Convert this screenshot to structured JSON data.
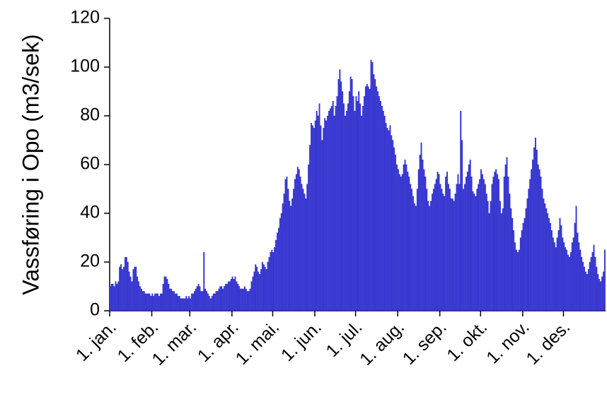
{
  "chart_data": {
    "type": "bar",
    "y_label": "Vassføring i Opo (m3/sek)",
    "color": "#3333e6",
    "ylim": [
      0,
      120
    ],
    "yticks": [
      0,
      20,
      40,
      60,
      80,
      100,
      120
    ],
    "categories": [
      "1. jan.",
      null,
      null,
      null,
      null,
      null,
      null,
      null,
      null,
      null,
      null,
      null,
      null,
      null,
      null,
      null,
      null,
      null,
      null,
      null,
      null,
      null,
      null,
      null,
      null,
      null,
      null,
      null,
      null,
      null,
      null,
      "1. feb.",
      null,
      null,
      null,
      null,
      null,
      null,
      null,
      null,
      null,
      null,
      null,
      null,
      null,
      null,
      null,
      null,
      null,
      null,
      null,
      null,
      null,
      null,
      null,
      null,
      null,
      null,
      null,
      "1. mar.",
      null,
      null,
      null,
      null,
      null,
      null,
      null,
      null,
      null,
      null,
      null,
      null,
      null,
      null,
      null,
      null,
      null,
      null,
      null,
      null,
      null,
      null,
      null,
      null,
      null,
      null,
      null,
      null,
      null,
      null,
      "1. apr.",
      null,
      null,
      null,
      null,
      null,
      null,
      null,
      null,
      null,
      null,
      null,
      null,
      null,
      null,
      null,
      null,
      null,
      null,
      null,
      null,
      null,
      null,
      null,
      null,
      null,
      null,
      null,
      null,
      null,
      "1. mai.",
      null,
      null,
      null,
      null,
      null,
      null,
      null,
      null,
      null,
      null,
      null,
      null,
      null,
      null,
      null,
      null,
      null,
      null,
      null,
      null,
      null,
      null,
      null,
      null,
      null,
      null,
      null,
      null,
      null,
      null,
      "1. jun.",
      null,
      null,
      null,
      null,
      null,
      null,
      null,
      null,
      null,
      null,
      null,
      null,
      null,
      null,
      null,
      null,
      null,
      null,
      null,
      null,
      null,
      null,
      null,
      null,
      null,
      null,
      null,
      null,
      null,
      "1. jul.",
      null,
      null,
      null,
      null,
      null,
      null,
      null,
      null,
      null,
      null,
      null,
      null,
      null,
      null,
      null,
      null,
      null,
      null,
      null,
      null,
      null,
      null,
      null,
      null,
      null,
      null,
      null,
      null,
      null,
      null,
      "1. aug.",
      null,
      null,
      null,
      null,
      null,
      null,
      null,
      null,
      null,
      null,
      null,
      null,
      null,
      null,
      null,
      null,
      null,
      null,
      null,
      null,
      null,
      null,
      null,
      null,
      null,
      null,
      null,
      null,
      null,
      null,
      "1. sep.",
      null,
      null,
      null,
      null,
      null,
      null,
      null,
      null,
      null,
      null,
      null,
      null,
      null,
      null,
      null,
      null,
      null,
      null,
      null,
      null,
      null,
      null,
      null,
      null,
      null,
      null,
      null,
      null,
      null,
      "1. okt.",
      null,
      null,
      null,
      null,
      null,
      null,
      null,
      null,
      null,
      null,
      null,
      null,
      null,
      null,
      null,
      null,
      null,
      null,
      null,
      null,
      null,
      null,
      null,
      null,
      null,
      null,
      null,
      null,
      null,
      null,
      "1. nov.",
      null,
      null,
      null,
      null,
      null,
      null,
      null,
      null,
      null,
      null,
      null,
      null,
      null,
      null,
      null,
      null,
      null,
      null,
      null,
      null,
      null,
      null,
      null,
      null,
      null,
      null,
      null,
      null,
      null,
      "1. des.",
      null,
      null,
      null,
      null,
      null,
      null,
      null,
      null,
      null,
      null,
      null,
      null,
      null,
      null,
      null,
      null,
      null,
      null,
      null,
      null,
      null,
      null,
      null,
      null,
      null,
      null,
      null,
      null,
      null,
      null
    ],
    "values": [
      10,
      11,
      11,
      10,
      12,
      11,
      12,
      18,
      19,
      17,
      18,
      22,
      22,
      20,
      16,
      14,
      12,
      17,
      18,
      18,
      14,
      12,
      10,
      9,
      8,
      8,
      7,
      7,
      7,
      7,
      6,
      7,
      6,
      7,
      7,
      7,
      6,
      7,
      7,
      11,
      14,
      14,
      13,
      11,
      9,
      9,
      8,
      8,
      7,
      7,
      6,
      6,
      5,
      5,
      5,
      5,
      6,
      5,
      6,
      5,
      7,
      7,
      8,
      9,
      10,
      11,
      10,
      8,
      8,
      24,
      9,
      8,
      7,
      6,
      5,
      6,
      7,
      7,
      8,
      8,
      9,
      10,
      10,
      9,
      10,
      11,
      11,
      12,
      12,
      13,
      14,
      13,
      14,
      12,
      11,
      10,
      9,
      9,
      9,
      10,
      9,
      8,
      8,
      9,
      12,
      14,
      16,
      19,
      18,
      16,
      15,
      17,
      20,
      19,
      18,
      17,
      20,
      22,
      24,
      25,
      24,
      26,
      29,
      32,
      34,
      38,
      40,
      44,
      48,
      54,
      55,
      50,
      45,
      43,
      46,
      50,
      54,
      56,
      59,
      58,
      55,
      52,
      50,
      48,
      46,
      52,
      60,
      68,
      77,
      76,
      75,
      78,
      82,
      80,
      85,
      76,
      70,
      75,
      79,
      78,
      80,
      82,
      83,
      84,
      86,
      80,
      84,
      88,
      95,
      99,
      94,
      90,
      85,
      80,
      82,
      85,
      90,
      96,
      95,
      88,
      82,
      88,
      86,
      90,
      85,
      80,
      84,
      88,
      92,
      93,
      92,
      91,
      103,
      102,
      97,
      95,
      92,
      90,
      88,
      86,
      84,
      82,
      80,
      77,
      75,
      74,
      76,
      72,
      70,
      67,
      64,
      60,
      58,
      56,
      55,
      56,
      60,
      62,
      60,
      57,
      55,
      52,
      50,
      47,
      44,
      43,
      50,
      58,
      64,
      69,
      62,
      58,
      55,
      50,
      45,
      43,
      45,
      48,
      50,
      52,
      54,
      57,
      56,
      52,
      50,
      48,
      47,
      55,
      57,
      52,
      50,
      46,
      46,
      45,
      48,
      52,
      56,
      52,
      82,
      70,
      50,
      52,
      55,
      57,
      60,
      62,
      55,
      49,
      48,
      47,
      50,
      52,
      54,
      58,
      56,
      54,
      52,
      48,
      45,
      40,
      45,
      52,
      55,
      57,
      58,
      56,
      54,
      45,
      40,
      42,
      55,
      60,
      63,
      55,
      48,
      42,
      38,
      33,
      28,
      25,
      24,
      25,
      30,
      33,
      36,
      38,
      42,
      46,
      50,
      54,
      58,
      62,
      67,
      71,
      66,
      60,
      58,
      55,
      50,
      46,
      44,
      42,
      40,
      38,
      36,
      33,
      30,
      28,
      26,
      30,
      33,
      38,
      35,
      30,
      28,
      26,
      25,
      23,
      22,
      24,
      28,
      30,
      36,
      43,
      32,
      28,
      25,
      22,
      20,
      18,
      16,
      15,
      17,
      20,
      22,
      24,
      27,
      22,
      18,
      15,
      13,
      12,
      14,
      16,
      25
    ]
  }
}
